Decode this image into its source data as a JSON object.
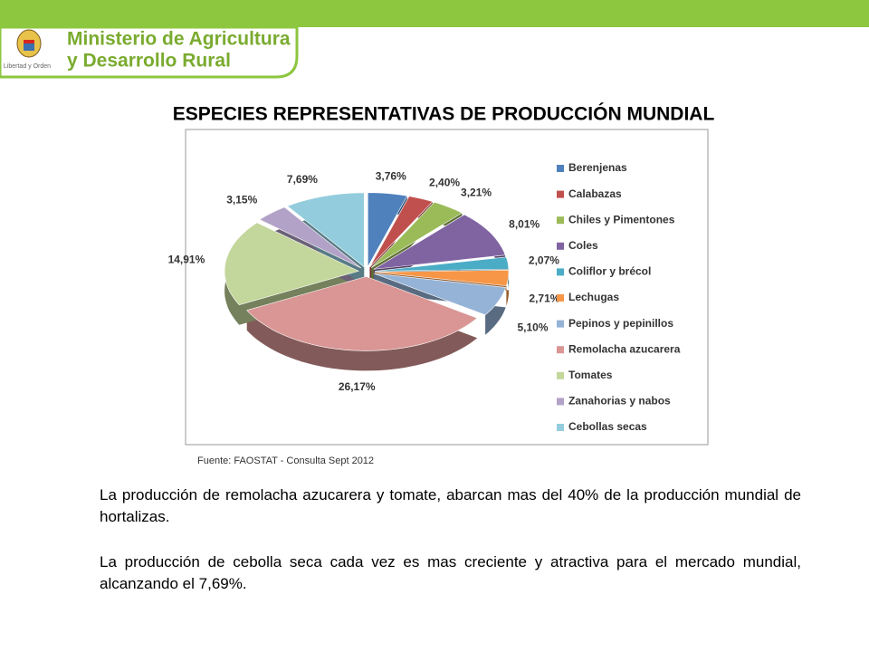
{
  "header": {
    "line1": "Ministerio de Agricultura",
    "line2": "y Desarrollo Rural",
    "motto": "Libertad y Orden"
  },
  "title": "ESPECIES REPRESENTATIVAS DE PRODUCCIÓN  MUNDIAL",
  "chart_data": {
    "type": "pie",
    "categories": [
      "Berenjenas",
      "Calabazas",
      "Chiles y Pimentones",
      "Coles",
      "Coliflor y brécol",
      "Lechugas",
      "Pepinos y pepinillos",
      "Remolacha azucarera",
      "Tomates",
      "Zanahorias y nabos",
      "Cebollas secas"
    ],
    "values": [
      3.76,
      2.4,
      3.21,
      8.01,
      2.07,
      2.71,
      5.1,
      26.17,
      14.91,
      3.15,
      7.69
    ],
    "value_labels": [
      "3,76%",
      "2,40%",
      "3,21%",
      "8,01%",
      "2,07%",
      "2,71%",
      "5,10%",
      "26,17%",
      "14,91%",
      "3,15%",
      "7,69%"
    ],
    "colors": [
      "#4f81bd",
      "#c0504d",
      "#9bbb59",
      "#8064a2",
      "#4bacc6",
      "#f79646",
      "#95b3d7",
      "#d99694",
      "#c3d69b",
      "#b3a2c7",
      "#93cddd"
    ],
    "legend": "right"
  },
  "source": "Fuente: FAOSTAT - Consulta Sept 2012",
  "paragraphs": [
    "La producción de remolacha azucarera y tomate, abarcan mas del 40% de la producción mundial de hortalizas.",
    "La producción de cebolla seca cada vez es mas creciente y atractiva para el mercado mundial, alcanzando el 7,69%."
  ]
}
